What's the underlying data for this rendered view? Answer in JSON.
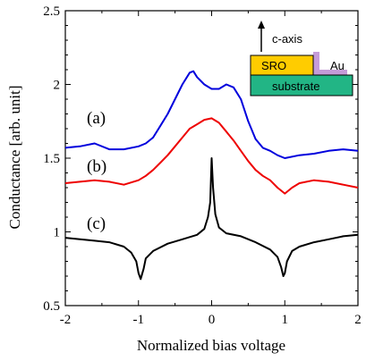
{
  "chart_data": {
    "type": "line",
    "xlabel": "Normalized bias voltage",
    "ylabel": "Conductance [arb. unit]",
    "xlim": [
      -2,
      2
    ],
    "ylim": [
      0.5,
      2.5
    ],
    "x_ticks": [
      "-2",
      "-1",
      "0",
      "1",
      "2"
    ],
    "y_ticks": [
      "0.5",
      "1",
      "1.5",
      "2",
      "2.5"
    ],
    "grid": false,
    "series": [
      {
        "name": "(a)",
        "color": "#0000dd",
        "points": [
          [
            -2.0,
            1.57
          ],
          [
            -1.8,
            1.58
          ],
          [
            -1.6,
            1.6
          ],
          [
            -1.4,
            1.56
          ],
          [
            -1.2,
            1.56
          ],
          [
            -1.0,
            1.58
          ],
          [
            -0.9,
            1.6
          ],
          [
            -0.8,
            1.64
          ],
          [
            -0.7,
            1.72
          ],
          [
            -0.6,
            1.8
          ],
          [
            -0.5,
            1.9
          ],
          [
            -0.4,
            2.0
          ],
          [
            -0.3,
            2.08
          ],
          [
            -0.25,
            2.09
          ],
          [
            -0.2,
            2.05
          ],
          [
            -0.1,
            2.0
          ],
          [
            0.0,
            1.97
          ],
          [
            0.1,
            1.97
          ],
          [
            0.2,
            2.0
          ],
          [
            0.3,
            1.98
          ],
          [
            0.4,
            1.9
          ],
          [
            0.5,
            1.75
          ],
          [
            0.6,
            1.63
          ],
          [
            0.7,
            1.57
          ],
          [
            0.8,
            1.55
          ],
          [
            0.9,
            1.52
          ],
          [
            1.0,
            1.5
          ],
          [
            1.2,
            1.52
          ],
          [
            1.4,
            1.53
          ],
          [
            1.6,
            1.55
          ],
          [
            1.8,
            1.56
          ],
          [
            2.0,
            1.55
          ]
        ]
      },
      {
        "name": "(b)",
        "color": "#ee0000",
        "points": [
          [
            -2.0,
            1.33
          ],
          [
            -1.8,
            1.34
          ],
          [
            -1.6,
            1.35
          ],
          [
            -1.4,
            1.34
          ],
          [
            -1.2,
            1.32
          ],
          [
            -1.0,
            1.35
          ],
          [
            -0.9,
            1.38
          ],
          [
            -0.8,
            1.42
          ],
          [
            -0.7,
            1.47
          ],
          [
            -0.6,
            1.52
          ],
          [
            -0.5,
            1.58
          ],
          [
            -0.4,
            1.64
          ],
          [
            -0.3,
            1.7
          ],
          [
            -0.2,
            1.73
          ],
          [
            -0.1,
            1.76
          ],
          [
            0.0,
            1.77
          ],
          [
            0.1,
            1.74
          ],
          [
            0.2,
            1.68
          ],
          [
            0.3,
            1.62
          ],
          [
            0.4,
            1.55
          ],
          [
            0.5,
            1.48
          ],
          [
            0.6,
            1.42
          ],
          [
            0.7,
            1.38
          ],
          [
            0.8,
            1.35
          ],
          [
            0.9,
            1.3
          ],
          [
            1.0,
            1.26
          ],
          [
            1.1,
            1.3
          ],
          [
            1.2,
            1.33
          ],
          [
            1.4,
            1.35
          ],
          [
            1.6,
            1.34
          ],
          [
            1.8,
            1.32
          ],
          [
            2.0,
            1.3
          ]
        ]
      },
      {
        "name": "(c)",
        "color": "#000000",
        "points": [
          [
            -2.0,
            0.96
          ],
          [
            -1.8,
            0.95
          ],
          [
            -1.6,
            0.94
          ],
          [
            -1.4,
            0.93
          ],
          [
            -1.2,
            0.9
          ],
          [
            -1.1,
            0.86
          ],
          [
            -1.03,
            0.8
          ],
          [
            -1.0,
            0.72
          ],
          [
            -0.97,
            0.68
          ],
          [
            -0.93,
            0.75
          ],
          [
            -0.9,
            0.82
          ],
          [
            -0.8,
            0.87
          ],
          [
            -0.6,
            0.92
          ],
          [
            -0.4,
            0.95
          ],
          [
            -0.2,
            0.98
          ],
          [
            -0.1,
            1.02
          ],
          [
            -0.05,
            1.1
          ],
          [
            -0.02,
            1.2
          ],
          [
            0.0,
            1.5
          ],
          [
            0.02,
            1.3
          ],
          [
            0.05,
            1.12
          ],
          [
            0.1,
            1.03
          ],
          [
            0.2,
            0.99
          ],
          [
            0.4,
            0.97
          ],
          [
            0.6,
            0.93
          ],
          [
            0.8,
            0.88
          ],
          [
            0.9,
            0.83
          ],
          [
            0.95,
            0.76
          ],
          [
            0.98,
            0.7
          ],
          [
            1.0,
            0.72
          ],
          [
            1.03,
            0.8
          ],
          [
            1.1,
            0.87
          ],
          [
            1.2,
            0.9
          ],
          [
            1.4,
            0.93
          ],
          [
            1.6,
            0.95
          ],
          [
            1.8,
            0.97
          ],
          [
            2.0,
            0.98
          ]
        ]
      }
    ],
    "inset": {
      "arrow_label": "c-axis",
      "sro_label": "SRO",
      "au_label": "Au",
      "substrate_label": "substrate",
      "sro_color": "#ffcc00",
      "substrate_color": "#22b585",
      "au_color": "#c59bd8"
    }
  }
}
